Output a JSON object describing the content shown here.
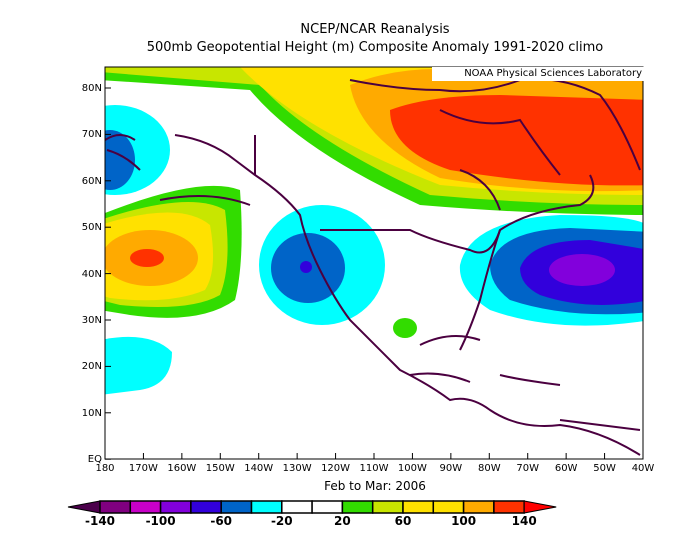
{
  "title": {
    "line1": "NCEP/NCAR Reanalysis",
    "line2": "500mb Geopotential Height (m) Composite Anomaly 1991-2020 climo"
  },
  "credit": "NOAA Physical Sciences Laboratory",
  "subtitle": "Feb to Mar: 2006",
  "lat_labels": [
    "80N",
    "70N",
    "60N",
    "50N",
    "40N",
    "30N",
    "20N",
    "10N",
    "EQ"
  ],
  "lon_labels": [
    "180",
    "170W",
    "160W",
    "150W",
    "140W",
    "130W",
    "120W",
    "110W",
    "100W",
    "90W",
    "80W",
    "70W",
    "60W",
    "50W",
    "40W"
  ],
  "colorbar": {
    "labels": [
      "-140",
      "-100",
      "-60",
      "-20",
      "20",
      "60",
      "100",
      "140"
    ],
    "under_color": "#4b004b",
    "over_color": "#ff0000",
    "colors": [
      "#800080",
      "#c800c8",
      "#8200dc",
      "#3200dc",
      "#0064c8",
      "#00ffff",
      "#ffffff",
      "#ffffff",
      "#32dc00",
      "#c8e600",
      "#ffe100",
      "#ffe100",
      "#ffaa00",
      "#ff3200"
    ]
  }
}
